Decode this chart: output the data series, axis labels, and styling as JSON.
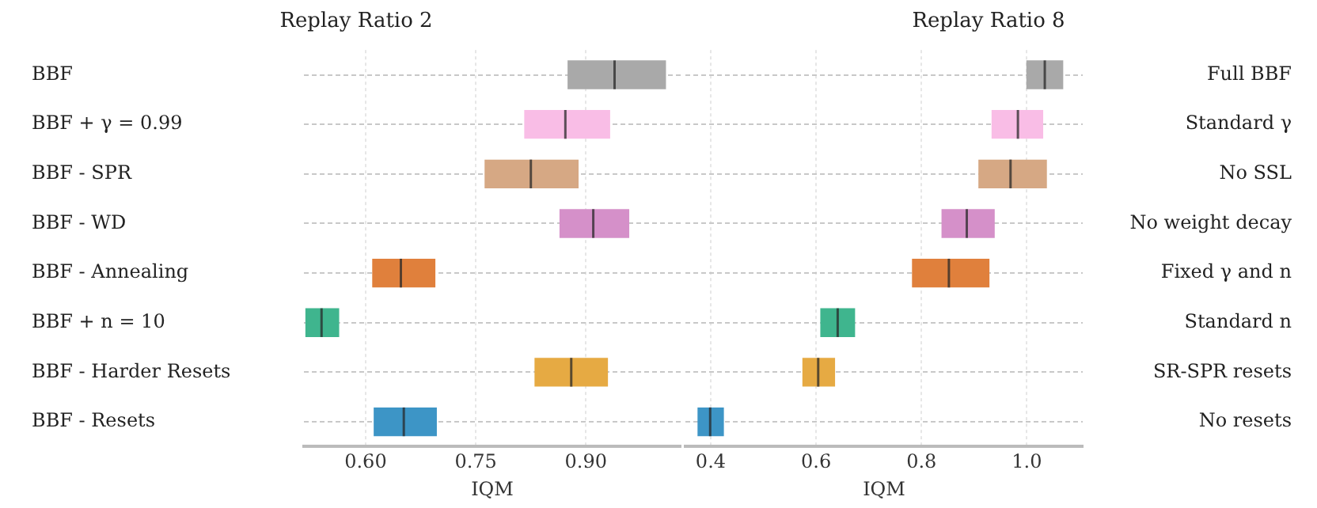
{
  "chart_data": [
    {
      "type": "box",
      "orientation": "horizontal",
      "title": "Replay Ratio 2",
      "xlabel": "IQM",
      "grid": true,
      "categories": [
        "BBF",
        "BBF + γ = 0.99",
        "BBF - SPR",
        "BBF - WD",
        "BBF - Annealing",
        "BBF + n = 10",
        "BBF - Harder Resets",
        "BBF - Resets"
      ],
      "colors": [
        "#a9a9a9",
        "#f9bde6",
        "#d6a884",
        "#d590c9",
        "#e0803c",
        "#3fb58e",
        "#e6aa43",
        "#3d95c6"
      ],
      "boxes": [
        {
          "low": 0.875,
          "q1": 0.875,
          "median": 0.939,
          "q3": 1.009,
          "high": 1.009
        },
        {
          "low": 0.816,
          "q1": 0.816,
          "median": 0.872,
          "q3": 0.933,
          "high": 0.933
        },
        {
          "low": 0.762,
          "q1": 0.762,
          "median": 0.825,
          "q3": 0.89,
          "high": 0.89
        },
        {
          "low": 0.864,
          "q1": 0.864,
          "median": 0.91,
          "q3": 0.959,
          "high": 0.959
        },
        {
          "low": 0.609,
          "q1": 0.609,
          "median": 0.648,
          "q3": 0.695,
          "high": 0.695
        },
        {
          "low": 0.518,
          "q1": 0.518,
          "median": 0.54,
          "q3": 0.564,
          "high": 0.564
        },
        {
          "low": 0.83,
          "q1": 0.83,
          "median": 0.88,
          "q3": 0.93,
          "high": 0.93
        },
        {
          "low": 0.611,
          "q1": 0.611,
          "median": 0.652,
          "q3": 0.697,
          "high": 0.697
        }
      ],
      "xlim": [
        0.516,
        1.029
      ],
      "xticks": [
        {
          "value": 0.6,
          "label": "0.60"
        },
        {
          "value": 0.75,
          "label": "0.75"
        },
        {
          "value": 0.9,
          "label": "0.90"
        }
      ]
    },
    {
      "type": "box",
      "orientation": "horizontal",
      "title": "Replay Ratio 8",
      "xlabel": "IQM",
      "grid": true,
      "categories": [
        "Full BBF",
        "Standard γ",
        "No SSL",
        "No weight decay",
        "Fixed γ and n",
        "Standard n",
        "SR-SPR resets",
        "No resets"
      ],
      "colors": [
        "#a9a9a9",
        "#f9bde6",
        "#d6a884",
        "#d590c9",
        "#e0803c",
        "#3fb58e",
        "#e6aa43",
        "#3d95c6"
      ],
      "boxes": [
        {
          "low": 0.999,
          "q1": 0.999,
          "median": 1.034,
          "q3": 1.069,
          "high": 1.069
        },
        {
          "low": 0.933,
          "q1": 0.933,
          "median": 0.983,
          "q3": 1.031,
          "high": 1.031
        },
        {
          "low": 0.908,
          "q1": 0.908,
          "median": 0.969,
          "q3": 1.038,
          "high": 1.038
        },
        {
          "low": 0.838,
          "q1": 0.838,
          "median": 0.886,
          "q3": 0.939,
          "high": 0.939
        },
        {
          "low": 0.782,
          "q1": 0.782,
          "median": 0.852,
          "q3": 0.929,
          "high": 0.929
        },
        {
          "low": 0.608,
          "q1": 0.608,
          "median": 0.641,
          "q3": 0.674,
          "high": 0.674
        },
        {
          "low": 0.574,
          "q1": 0.574,
          "median": 0.604,
          "q3": 0.636,
          "high": 0.636
        },
        {
          "low": 0.375,
          "q1": 0.375,
          "median": 0.399,
          "q3": 0.425,
          "high": 0.425
        }
      ],
      "xlim": [
        0.352,
        1.106
      ],
      "xticks": [
        0.4,
        0.6,
        0.8,
        {
          "value": 1.0,
          "label": "1.0"
        }
      ]
    }
  ]
}
